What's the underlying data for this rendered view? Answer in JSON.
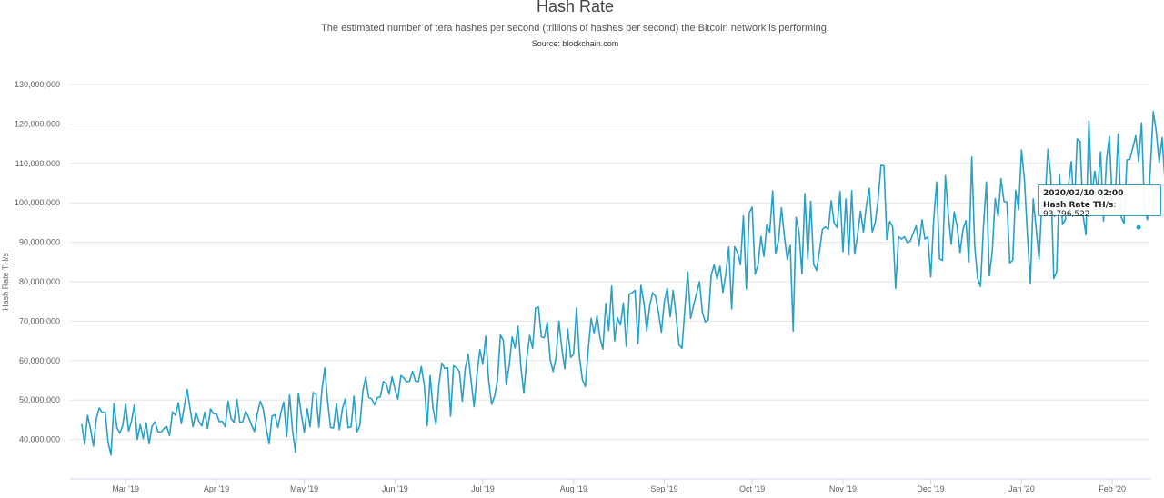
{
  "header": {
    "title": "Hash Rate",
    "subtitle": "The estimated number of tera hashes per second (trillions of hashes per second) the Bitcoin network is performing.",
    "source": "Source: blockchain.com"
  },
  "tooltip": {
    "date": "2020/02/10 02:00",
    "label": "Hash Rate TH/s",
    "value": "93,796,522"
  },
  "colors": {
    "series": "#2aa0c8",
    "grid": "#e6e6e6",
    "tooltip_border": "#2aa0c8"
  },
  "chart_data": {
    "type": "line",
    "title": "Hash Rate",
    "ylabel": "Hash Rate TH/s",
    "xlabel": "",
    "ylim": [
      30000000,
      130000000
    ],
    "xlim": [
      "2019-02-10",
      "2020-02-14"
    ],
    "grid": true,
    "legend": "none",
    "y_ticks": [
      40000000,
      50000000,
      60000000,
      70000000,
      80000000,
      90000000,
      100000000,
      110000000,
      120000000,
      130000000
    ],
    "y_tick_labels": [
      "40,000,000",
      "50,000,000",
      "60,000,000",
      "70,000,000",
      "80,000,000",
      "90,000,000",
      "100,000,000",
      "110,000,000",
      "120,000,000",
      "130,000,000"
    ],
    "x_ticks": [
      "2019-03-01",
      "2019-04-01",
      "2019-05-01",
      "2019-06-01",
      "2019-07-01",
      "2019-08-01",
      "2019-09-01",
      "2019-10-01",
      "2019-11-01",
      "2019-12-01",
      "2020-01-01",
      "2020-02-01"
    ],
    "x_tick_labels": [
      "Mar '19",
      "Apr '19",
      "May '19",
      "Jun '19",
      "Jul '19",
      "Aug '19",
      "Sep '19",
      "Oct '19",
      "Nov '19",
      "Dec '19",
      "Jan '20",
      "Feb '20"
    ],
    "series": [
      {
        "x_start": "2019-02-14",
        "x_step_days": 1,
        "values": [
          43900000,
          38800000,
          46100000,
          42700000,
          38300000,
          45300000,
          48000000,
          46800000,
          47000000,
          39300000,
          36100000,
          49100000,
          43000000,
          41600000,
          43500000,
          48900000,
          42100000,
          44700000,
          48800000,
          40000000,
          43800000,
          40200000,
          44200000,
          38900000,
          43300000,
          44500000,
          42000000,
          41800000,
          42700000,
          43300000,
          41000000,
          47000000,
          46100000,
          49300000,
          44000000,
          48300000,
          52700000,
          47800000,
          43200000,
          46900000,
          44600000,
          43400000,
          46900000,
          42800000,
          47700000,
          46500000,
          46500000,
          44500000,
          44600000,
          43200000,
          49700000,
          45400000,
          44300000,
          50200000,
          44300000,
          44500000,
          47200000,
          45600000,
          43600000,
          42000000,
          46700000,
          49700000,
          47700000,
          42900000,
          38900000,
          45900000,
          46300000,
          43000000,
          46700000,
          49500000,
          40700000,
          51300000,
          42200000,
          36700000,
          51800000,
          46400000,
          41800000,
          47800000,
          43200000,
          51900000,
          51500000,
          43100000,
          52300000,
          58100000,
          49600000,
          43000000,
          42900000,
          49100000,
          42500000,
          47600000,
          50300000,
          43000000,
          43200000,
          51000000,
          41900000,
          43500000,
          52200000,
          55800000,
          50700000,
          50300000,
          48800000,
          50600000,
          50800000,
          54700000,
          54100000,
          51500000,
          55900000,
          52700000,
          50200000,
          56200000,
          55600000,
          54600000,
          54800000,
          57300000,
          54800000,
          54700000,
          58500000,
          53800000,
          43500000,
          56200000,
          47800000,
          43800000,
          54000000,
          59400000,
          58000000,
          58200000,
          45900000,
          58700000,
          58200000,
          57200000,
          49700000,
          58100000,
          61600000,
          54800000,
          48300000,
          56400000,
          62800000,
          59100000,
          66200000,
          54900000,
          48900000,
          50900000,
          55000000,
          66500000,
          65100000,
          53900000,
          58700000,
          66000000,
          63200000,
          68700000,
          58400000,
          51800000,
          60500000,
          66400000,
          63100000,
          73300000,
          73600000,
          66000000,
          65800000,
          69700000,
          60300000,
          57200000,
          60800000,
          70000000,
          62900000,
          57900000,
          68000000,
          60800000,
          61700000,
          73400000,
          60900000,
          55200000,
          53400000,
          62800000,
          70700000,
          66900000,
          71300000,
          65800000,
          62900000,
          74500000,
          67600000,
          78900000,
          65000000,
          70900000,
          69000000,
          74600000,
          63600000,
          76800000,
          77200000,
          77800000,
          64300000,
          79100000,
          74800000,
          67500000,
          73900000,
          77200000,
          76300000,
          72200000,
          67200000,
          75000000,
          78300000,
          71100000,
          77800000,
          71400000,
          64100000,
          63100000,
          73000000,
          82500000,
          70700000,
          74100000,
          77000000,
          80000000,
          72200000,
          69800000,
          70300000,
          81600000,
          84300000,
          80600000,
          83900000,
          77300000,
          82000000,
          88800000,
          73100000,
          88900000,
          87500000,
          84300000,
          96700000,
          78200000,
          97500000,
          98900000,
          81900000,
          84200000,
          91500000,
          86400000,
          94400000,
          92500000,
          103000000,
          87100000,
          90500000,
          98700000,
          91500000,
          85600000,
          89200000,
          67500000,
          96300000,
          92500000,
          82000000,
          102300000,
          85700000,
          100400000,
          84400000,
          82900000,
          87800000,
          93300000,
          93900000,
          93300000,
          100500000,
          94900000,
          93700000,
          102900000,
          87600000,
          101000000,
          86800000,
          103100000,
          87000000,
          91900000,
          97900000,
          92600000,
          99400000,
          103700000,
          92600000,
          94800000,
          100700000,
          109500000,
          109400000,
          90700000,
          95300000,
          93900000,
          78300000,
          91400000,
          90800000,
          91400000,
          89900000,
          90300000,
          92300000,
          94200000,
          89100000,
          95700000,
          90800000,
          91400000,
          81200000,
          95700000,
          105300000,
          85800000,
          85400000,
          106900000,
          97000000,
          89500000,
          97700000,
          94000000,
          87400000,
          93300000,
          95500000,
          85000000,
          111600000,
          89100000,
          80900000,
          78800000,
          94100000,
          105300000,
          81500000,
          87600000,
          101100000,
          96600000,
          106100000,
          100400000,
          100200000,
          84800000,
          85400000,
          103200000,
          98300000,
          113400000,
          105800000,
          92000000,
          79500000,
          101000000,
          93300000,
          85700000,
          100600000,
          99900000,
          113600000,
          106700000,
          80800000,
          82500000,
          107200000,
          94500000,
          95800000,
          104400000,
          110500000,
          97900000,
          116200000,
          115600000,
          96900000,
          91900000,
          120700000,
          101600000,
          108000000,
          103100000,
          112900000,
          95400000,
          110800000,
          116800000,
          100100000,
          101200000,
          117500000,
          96400000,
          94800000,
          110900000,
          111000000,
          113900000,
          117000000,
          110500000,
          120300000,
          98600000,
          95700000,
          108700000,
          123100000,
          118100000,
          110200000,
          116500000,
          105400000,
          113800000,
          99100000,
          100300000,
          122700000,
          95500000,
          106800000,
          108400000,
          108900000,
          117500000,
          93800000
        ]
      }
    ],
    "tooltip_point": {
      "x": "2020-02-10",
      "y": 93796522
    }
  }
}
